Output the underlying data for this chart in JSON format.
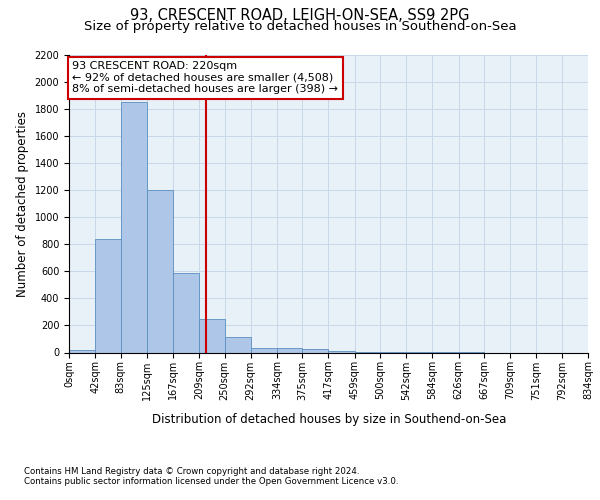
{
  "title1": "93, CRESCENT ROAD, LEIGH-ON-SEA, SS9 2PG",
  "title2": "Size of property relative to detached houses in Southend-on-Sea",
  "xlabel": "Distribution of detached houses by size in Southend-on-Sea",
  "ylabel": "Number of detached properties",
  "footnote1": "Contains HM Land Registry data © Crown copyright and database right 2024.",
  "footnote2": "Contains public sector information licensed under the Open Government Licence v3.0.",
  "bar_edges": [
    0,
    42,
    83,
    125,
    167,
    209,
    250,
    292,
    334,
    375,
    417,
    459,
    500,
    542,
    584,
    626,
    667,
    709,
    751,
    792,
    834
  ],
  "bar_heights": [
    20,
    840,
    1850,
    1200,
    590,
    250,
    115,
    35,
    35,
    25,
    10,
    5,
    2,
    2,
    1,
    1,
    0,
    0,
    0,
    0
  ],
  "tick_labels": [
    "0sqm",
    "42sqm",
    "83sqm",
    "125sqm",
    "167sqm",
    "209sqm",
    "250sqm",
    "292sqm",
    "334sqm",
    "375sqm",
    "417sqm",
    "459sqm",
    "500sqm",
    "542sqm",
    "584sqm",
    "626sqm",
    "667sqm",
    "709sqm",
    "751sqm",
    "792sqm",
    "834sqm"
  ],
  "bar_color": "#aec6e8",
  "bar_edge_color": "#5a8fc0",
  "property_line_x": 220,
  "property_line_color": "#cc0000",
  "annotation_line1": "93 CRESCENT ROAD: 220sqm",
  "annotation_line2": "← 92% of detached houses are smaller (4,508)",
  "annotation_line3": "8% of semi-detached houses are larger (398) →",
  "annotation_box_color": "#cc0000",
  "ylim": [
    0,
    2200
  ],
  "yticks": [
    0,
    200,
    400,
    600,
    800,
    1000,
    1200,
    1400,
    1600,
    1800,
    2000,
    2200
  ],
  "grid_color": "#c8d8e8",
  "bg_color": "#e8f0f8",
  "fig_bg_color": "#ffffff",
  "title1_fontsize": 10.5,
  "title2_fontsize": 9.5,
  "xlabel_fontsize": 8.5,
  "ylabel_fontsize": 8.5,
  "tick_fontsize": 7,
  "annotation_fontsize": 8,
  "footnote_fontsize": 6.2
}
